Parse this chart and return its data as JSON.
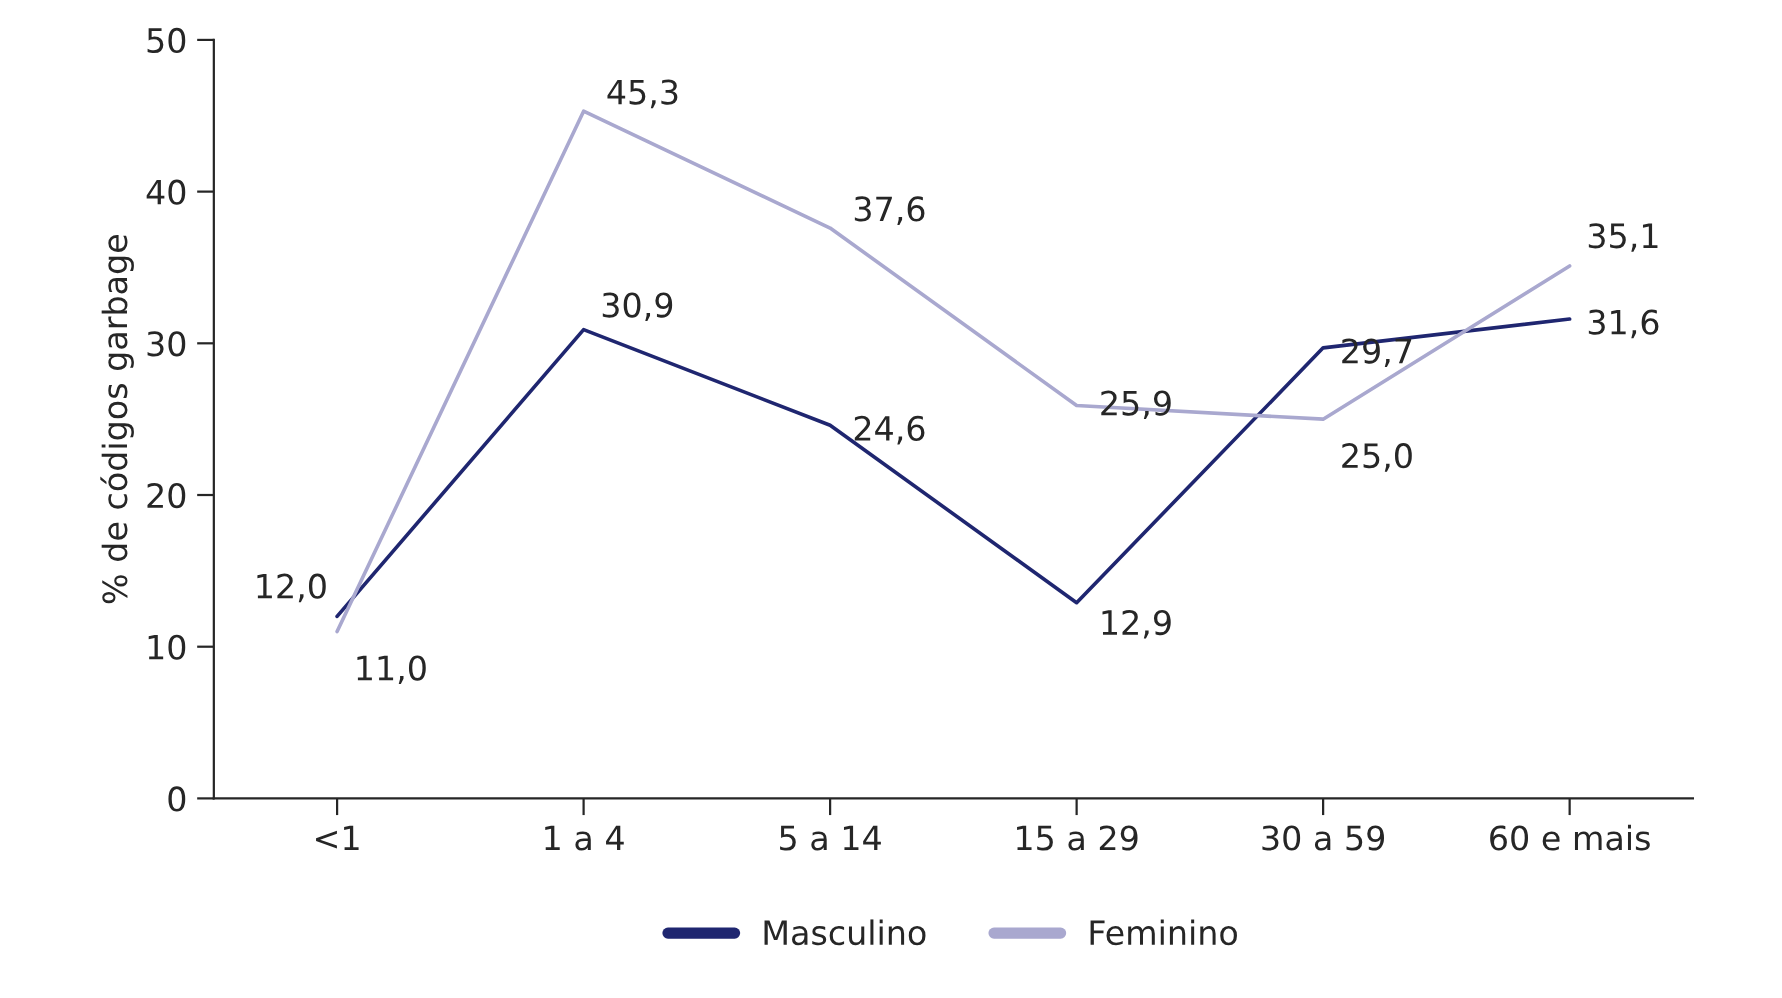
{
  "chart_data": {
    "type": "line",
    "ylabel": "% de códigos garbage",
    "categories": [
      "<1",
      "1 a 4",
      "5 a 14",
      "15 a 29",
      "30 a 59",
      "60 e mais"
    ],
    "series": [
      {
        "name": "Masculino",
        "color": "#1f2670",
        "values": [
          12.0,
          30.9,
          24.6,
          12.9,
          29.7,
          31.6
        ],
        "value_labels": [
          "12,0",
          "30,9",
          "24,6",
          "12,9",
          "29,7",
          "31,6"
        ]
      },
      {
        "name": "Feminino",
        "color": "#a9a8cf",
        "values": [
          11.0,
          45.3,
          37.6,
          25.9,
          25.0,
          35.1
        ],
        "value_labels": [
          "11,0",
          "45,3",
          "37,6",
          "25,9",
          "25,0",
          "35,1"
        ]
      }
    ],
    "ylim": [
      0,
      50
    ],
    "yticks": [
      0,
      10,
      20,
      30,
      40,
      50
    ],
    "grid": false,
    "legend": "bottom",
    "marker": "none",
    "line_style": "solid"
  }
}
